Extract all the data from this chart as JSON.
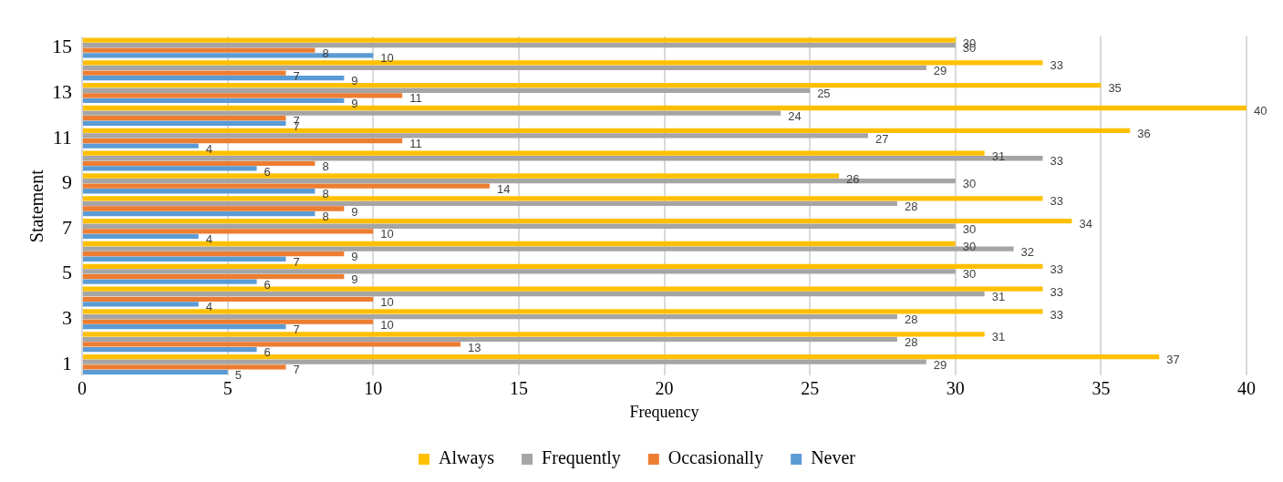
{
  "chart_data": {
    "type": "bar",
    "orientation": "horizontal",
    "xlabel": "Frequency",
    "ylabel": "Statement",
    "categories": [
      "15",
      null,
      "13",
      null,
      "11",
      null,
      "9",
      null,
      "7",
      null,
      "5",
      null,
      "3",
      null,
      "1"
    ],
    "series": [
      {
        "name": "Always",
        "color": "#ffc000",
        "values": [
          30,
          33,
          35,
          40,
          36,
          31,
          26,
          33,
          34,
          30,
          33,
          33,
          33,
          31,
          37
        ]
      },
      {
        "name": "Frequently",
        "color": "#a5a5a5",
        "values": [
          30,
          29,
          25,
          24,
          27,
          33,
          30,
          28,
          30,
          32,
          30,
          31,
          28,
          28,
          29
        ]
      },
      {
        "name": "Occasionally",
        "color": "#ed7d31",
        "values": [
          8,
          7,
          11,
          7,
          11,
          8,
          14,
          9,
          10,
          9,
          9,
          10,
          10,
          13,
          7
        ]
      },
      {
        "name": "Never",
        "color": "#5b9bd5",
        "values": [
          10,
          9,
          9,
          7,
          4,
          6,
          8,
          8,
          4,
          7,
          6,
          4,
          7,
          6,
          5
        ]
      }
    ],
    "xlim": [
      0,
      40
    ],
    "xticks": [
      0,
      5,
      10,
      15,
      20,
      25,
      30,
      35,
      40
    ],
    "grid": "x",
    "legend": "bottom",
    "data_labels": true
  }
}
